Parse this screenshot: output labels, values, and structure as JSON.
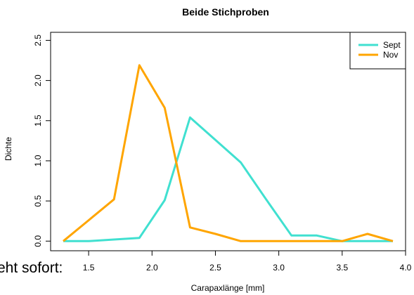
{
  "chart_data": {
    "type": "line",
    "title": "Beide Stichproben",
    "xlabel": "Carapaxlänge [mm]",
    "ylabel": "Dichte",
    "xlim": [
      1.3,
      3.9
    ],
    "ylim": [
      0,
      2.5
    ],
    "xticks": [
      "1.5",
      "2.0",
      "2.5",
      "3.0",
      "3.5",
      "4.0"
    ],
    "yticks": [
      "0.0",
      "0.5",
      "1.0",
      "1.5",
      "2.0",
      "2.5"
    ],
    "grid": false,
    "legend_position": "top-right",
    "series": [
      {
        "name": "Sept",
        "color": "#40E0D0",
        "x": [
          1.3,
          1.5,
          1.7,
          1.9,
          2.1,
          2.3,
          2.5,
          2.7,
          2.9,
          3.1,
          3.3,
          3.5,
          3.7,
          3.9
        ],
        "y": [
          0.0,
          0.0,
          0.02,
          0.04,
          0.51,
          1.54,
          1.26,
          0.98,
          0.52,
          0.07,
          0.07,
          0.0,
          0.0,
          0.0
        ]
      },
      {
        "name": "Nov",
        "color": "#FFA500",
        "x": [
          1.3,
          1.5,
          1.7,
          1.9,
          2.1,
          2.3,
          2.5,
          2.7,
          2.9,
          3.1,
          3.3,
          3.5,
          3.7,
          3.9
        ],
        "y": [
          0.0,
          0.26,
          0.52,
          2.19,
          1.66,
          0.17,
          0.09,
          0.0,
          0.0,
          0.0,
          0.0,
          0.0,
          0.09,
          0.0
        ]
      }
    ]
  },
  "background_text": "eht sofort:"
}
